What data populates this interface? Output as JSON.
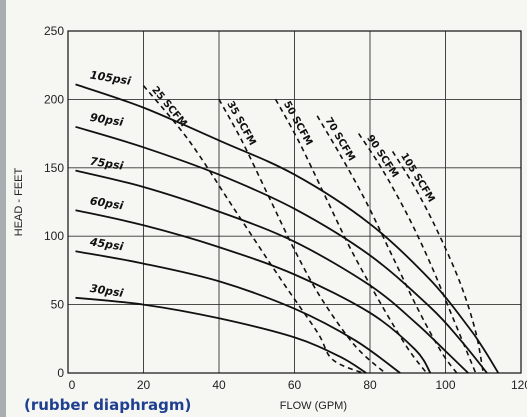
{
  "chart_data": {
    "type": "line",
    "xlabel": "FLOW (GPM)",
    "ylabel": "HEAD - FEET",
    "xlim": [
      0,
      120
    ],
    "ylim": [
      0,
      250
    ],
    "x_ticks": [
      "0",
      "20",
      "40",
      "60",
      "80",
      "100",
      "120"
    ],
    "y_ticks": [
      "0",
      "50",
      "100",
      "150",
      "200",
      "250"
    ],
    "grid": true,
    "annotation": "(rubber diaphragm)",
    "pressure_curves": [
      {
        "name": "105psi",
        "points": [
          [
            2,
            211
          ],
          [
            20,
            194
          ],
          [
            40,
            170
          ],
          [
            60,
            145
          ],
          [
            80,
            109
          ],
          [
            96,
            68
          ],
          [
            106,
            34
          ],
          [
            110,
            18
          ],
          [
            114,
            0
          ]
        ]
      },
      {
        "name": "90psi",
        "points": [
          [
            2,
            180
          ],
          [
            20,
            165
          ],
          [
            40,
            145
          ],
          [
            60,
            120
          ],
          [
            80,
            86
          ],
          [
            96,
            48
          ],
          [
            104,
            24
          ],
          [
            111,
            0
          ]
        ]
      },
      {
        "name": "75psi",
        "points": [
          [
            2,
            148
          ],
          [
            20,
            136
          ],
          [
            40,
            118
          ],
          [
            60,
            96
          ],
          [
            80,
            64
          ],
          [
            92,
            37
          ],
          [
            100,
            16
          ],
          [
            106,
            0
          ]
        ]
      },
      {
        "name": "60psi",
        "points": [
          [
            2,
            119
          ],
          [
            20,
            108
          ],
          [
            40,
            92
          ],
          [
            60,
            72
          ],
          [
            80,
            44
          ],
          [
            92,
            17
          ],
          [
            96,
            0
          ]
        ]
      },
      {
        "name": "45psi",
        "points": [
          [
            2,
            89
          ],
          [
            20,
            80
          ],
          [
            40,
            67
          ],
          [
            60,
            47
          ],
          [
            76,
            24
          ],
          [
            88,
            0
          ]
        ]
      },
      {
        "name": "30psi",
        "points": [
          [
            2,
            55
          ],
          [
            20,
            50
          ],
          [
            40,
            40
          ],
          [
            60,
            26
          ],
          [
            72,
            12
          ],
          [
            79,
            0
          ]
        ]
      }
    ],
    "air_consumption_lines": [
      {
        "name": "25 SCFM",
        "points": [
          [
            20,
            210
          ],
          [
            32,
            170
          ],
          [
            44,
            120
          ],
          [
            56,
            70
          ],
          [
            66,
            30
          ],
          [
            70,
            10
          ],
          [
            78,
            0
          ]
        ]
      },
      {
        "name": "35 SCFM",
        "points": [
          [
            40,
            200
          ],
          [
            46,
            170
          ],
          [
            53,
            130
          ],
          [
            60,
            90
          ],
          [
            67,
            55
          ],
          [
            76,
            20
          ],
          [
            84,
            0
          ]
        ]
      },
      {
        "name": "50 SCFM",
        "points": [
          [
            55,
            200
          ],
          [
            61,
            170
          ],
          [
            68,
            130
          ],
          [
            75,
            90
          ],
          [
            83,
            50
          ],
          [
            90,
            18
          ],
          [
            95,
            0
          ]
        ]
      },
      {
        "name": "70 SCFM",
        "points": [
          [
            66,
            188
          ],
          [
            72,
            160
          ],
          [
            79,
            125
          ],
          [
            86,
            85
          ],
          [
            93,
            45
          ],
          [
            99,
            15
          ],
          [
            103,
            0
          ]
        ]
      },
      {
        "name": "90 SCFM",
        "points": [
          [
            77,
            175
          ],
          [
            83,
            150
          ],
          [
            90,
            115
          ],
          [
            96,
            80
          ],
          [
            102,
            40
          ],
          [
            108,
            0
          ]
        ]
      },
      {
        "name": "105 SCFM",
        "points": [
          [
            86,
            162
          ],
          [
            92,
            135
          ],
          [
            98,
            103
          ],
          [
            104,
            65
          ],
          [
            108,
            30
          ],
          [
            110,
            0
          ]
        ]
      }
    ]
  }
}
